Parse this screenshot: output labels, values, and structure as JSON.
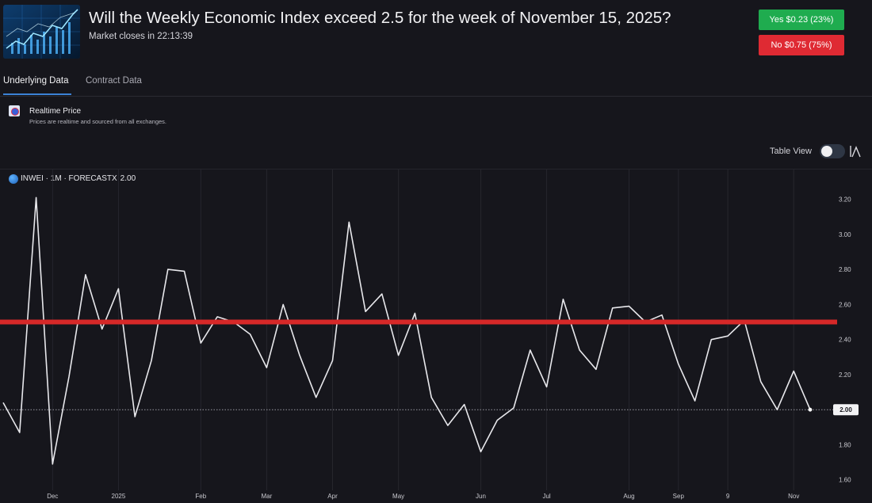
{
  "market": {
    "title": "Will the Weekly Economic Index exceed 2.5 for the week of November 15, 2025?",
    "closes_label": "Market closes in 22:13:39",
    "thumbnail_icon": "stock-chart-thumbnail"
  },
  "actions": {
    "yes_label": "Yes $0.23 (23%)",
    "no_label": "No $0.75 (75%)",
    "yes_color": "#1fac4f",
    "no_color": "#df2a33"
  },
  "tabs": [
    {
      "label": "Underlying Data",
      "active": true
    },
    {
      "label": "Contract Data",
      "active": false
    }
  ],
  "realtime": {
    "title": "Realtime Price",
    "subtitle": "Prices are realtime and sourced from all exchanges."
  },
  "controls": {
    "table_view_label": "Table View",
    "table_view_on": false,
    "chart_type_icon": "chart-type-icon"
  },
  "legend": {
    "symbol": "INWEI · 1M · FORECASTX",
    "value": "2.00"
  },
  "chart_data": {
    "type": "line",
    "y_ticks": [
      "3.20",
      "3.00",
      "2.80",
      "2.60",
      "2.40",
      "2.20",
      "2.00",
      "1.80",
      "1.60"
    ],
    "y_tick_values": [
      3.2,
      3.0,
      2.8,
      2.6,
      2.4,
      2.2,
      2.0,
      1.8,
      1.6
    ],
    "ylim": [
      1.54,
      3.37
    ],
    "current_value_label": "2.00",
    "current_value": 2.0,
    "threshold": 2.5,
    "x_tick_labels": [
      "Dec",
      "2025",
      "Feb",
      "Mar",
      "Apr",
      "May",
      "Jun",
      "Jul",
      "Aug",
      "Sep",
      "9",
      "Nov"
    ],
    "x_tick_index": [
      3,
      7,
      12,
      16,
      20,
      24,
      29,
      33,
      38,
      41,
      44,
      48
    ],
    "series": [
      {
        "values": [
          2.04,
          1.87,
          3.21,
          1.69,
          2.19,
          2.77,
          2.46,
          2.69,
          1.96,
          2.28,
          2.8,
          2.79,
          2.38,
          2.53,
          2.5,
          2.43,
          2.24,
          2.6,
          2.31,
          2.07,
          2.28,
          3.07,
          2.56,
          2.66,
          2.31,
          2.55,
          2.07,
          1.91,
          2.03,
          1.76,
          1.94,
          2.01,
          2.34,
          2.13,
          2.63,
          2.34,
          2.23,
          2.58,
          2.59,
          2.5,
          2.54,
          2.26,
          2.05,
          2.4,
          2.42,
          2.51,
          2.16,
          2.0,
          2.22,
          2.0
        ]
      }
    ],
    "grid": true,
    "line_color": "#e8e8ec",
    "threshold_color": "#d62828"
  }
}
